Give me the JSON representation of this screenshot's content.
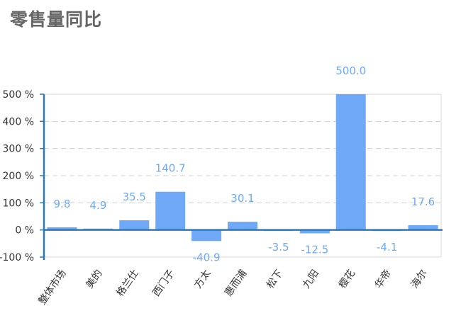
{
  "title": "零售量同比",
  "chart_data": {
    "type": "bar",
    "categories": [
      "整体市场",
      "美的",
      "格兰仕",
      "西门子",
      "方太",
      "惠而浦",
      "松下",
      "九阳",
      "樱花",
      "华帝",
      "海尔"
    ],
    "values": [
      9.8,
      4.9,
      35.5,
      140.7,
      -40.9,
      30.1,
      -3.5,
      -12.5,
      500.0,
      -4.1,
      17.6
    ],
    "value_labels": [
      "9.8",
      "4.9",
      "35.5",
      "140.7",
      "-40.9",
      "30.1",
      "-3.5",
      "-12.5",
      "500.0",
      "-4.1",
      "17.6"
    ],
    "yticks": [
      "500 %",
      "400 %",
      "300 %",
      "200 %",
      "100 %",
      "0 %",
      "-100 %"
    ],
    "ylim": [
      -100,
      500
    ],
    "bar_color": "#6fa8f7",
    "label_color": "#6fa8f7",
    "axis_color": "#2e7ab7",
    "grid": "dashed"
  }
}
